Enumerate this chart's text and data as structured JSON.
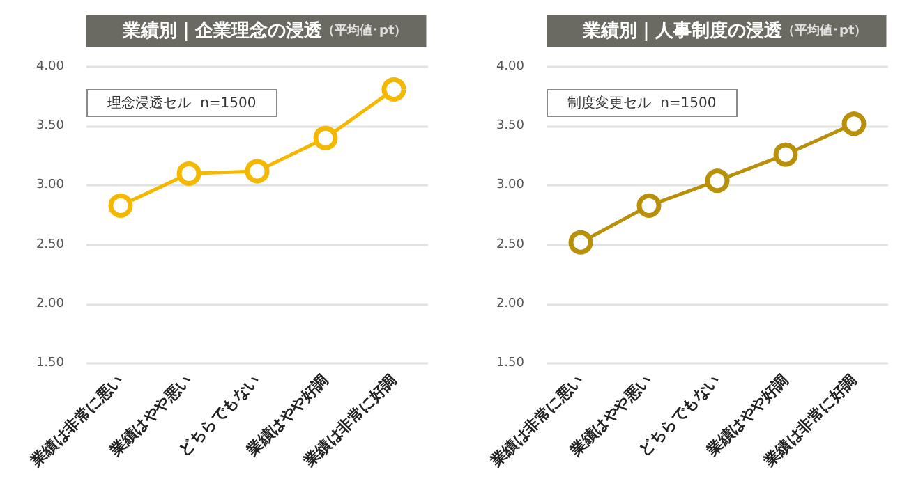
{
  "chart_data": [
    {
      "type": "line",
      "title": "業績別｜企業理念の浸透",
      "subtitle": "（平均値･pt）",
      "annotations": [
        "理念浸透セル  n=1500"
      ],
      "categories": [
        "業績は非常に悪い",
        "業績はやや悪い",
        "どちらでもない",
        "業績はやや好調",
        "業績は非常に好調"
      ],
      "series": [
        {
          "color": "#f5b800",
          "values": [
            2.83,
            3.1,
            3.12,
            3.4,
            3.81
          ]
        }
      ],
      "ylim": [
        1.5,
        4.0
      ],
      "yticks": [
        {
          "value": 1.5,
          "label": "1.50"
        },
        {
          "value": 2.0,
          "label": "2.00"
        },
        {
          "value": 2.5,
          "label": "2.50"
        },
        {
          "value": 3.0,
          "label": "3.00"
        },
        {
          "value": 3.5,
          "label": "3.50"
        },
        {
          "value": 4.0,
          "label": "4.00"
        }
      ],
      "grid": "y",
      "marker": "circle"
    },
    {
      "type": "line",
      "title": "業績別｜人事制度の浸透",
      "subtitle": "（平均値･pt）",
      "annotations": [
        "制度変更セル  n=1500"
      ],
      "categories": [
        "業績は非常に悪い",
        "業績はやや悪い",
        "どちらでもない",
        "業績はやや好調",
        "業績は非常に好調"
      ],
      "series": [
        {
          "color": "#b8900a",
          "values": [
            2.52,
            2.83,
            3.04,
            3.26,
            3.52
          ]
        }
      ],
      "ylim": [
        1.5,
        4.0
      ],
      "yticks": [
        {
          "value": 1.5,
          "label": "1.50"
        },
        {
          "value": 2.0,
          "label": "2.00"
        },
        {
          "value": 2.5,
          "label": "2.50"
        },
        {
          "value": 3.0,
          "label": "3.00"
        },
        {
          "value": 3.5,
          "label": "3.50"
        },
        {
          "value": 4.0,
          "label": "4.00"
        }
      ],
      "grid": "y",
      "marker": "circle"
    }
  ]
}
